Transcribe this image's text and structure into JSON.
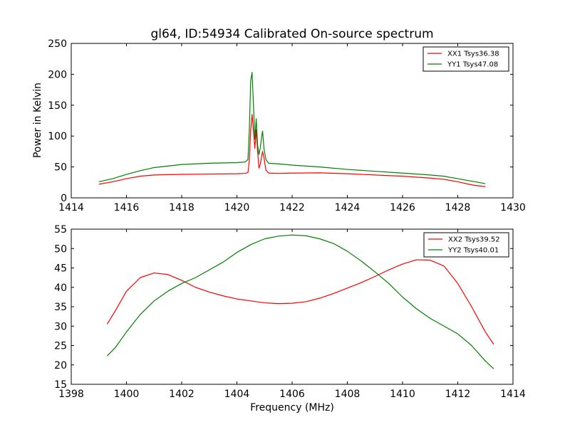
{
  "chart_data": [
    {
      "type": "line",
      "title": "gl64, ID:54934 Calibrated On-source spectrum",
      "xlabel": "",
      "ylabel": "Power in Kelvin",
      "xlim": [
        1414,
        1430
      ],
      "ylim": [
        0,
        250
      ],
      "xticks": [
        "1414",
        "1416",
        "1418",
        "1420",
        "1422",
        "1424",
        "1426",
        "1428",
        "1430"
      ],
      "yticks": [
        "0",
        "50",
        "100",
        "150",
        "200",
        "250"
      ],
      "legend_position": "top-right",
      "series": [
        {
          "name": "XX1 Tsys36.38",
          "color": "#ff0000",
          "points": [
            [
              1415.0,
              22
            ],
            [
              1415.5,
              26
            ],
            [
              1416.0,
              31
            ],
            [
              1416.5,
              35
            ],
            [
              1417.0,
              37
            ],
            [
              1418.0,
              38
            ],
            [
              1419.0,
              38.5
            ],
            [
              1420.0,
              39
            ],
            [
              1420.3,
              39.5
            ],
            [
              1420.4,
              41
            ],
            [
              1420.45,
              60
            ],
            [
              1420.5,
              110
            ],
            [
              1420.55,
              135
            ],
            [
              1420.6,
              108
            ],
            [
              1420.65,
              80
            ],
            [
              1420.7,
              110
            ],
            [
              1420.75,
              75
            ],
            [
              1420.8,
              48
            ],
            [
              1420.85,
              55
            ],
            [
              1420.9,
              68
            ],
            [
              1420.93,
              75
            ],
            [
              1420.98,
              65
            ],
            [
              1421.05,
              45
            ],
            [
              1421.15,
              40
            ],
            [
              1421.5,
              39.5
            ],
            [
              1422.0,
              40
            ],
            [
              1423.0,
              40.5
            ],
            [
              1424.0,
              39
            ],
            [
              1425.0,
              37
            ],
            [
              1426.0,
              35
            ],
            [
              1427.0,
              32
            ],
            [
              1427.5,
              30
            ],
            [
              1428.0,
              26
            ],
            [
              1428.5,
              21
            ],
            [
              1429.0,
              18
            ]
          ]
        },
        {
          "name": "YY1 Tsys47.08",
          "color": "#008000",
          "points": [
            [
              1415.0,
              26
            ],
            [
              1415.5,
              31
            ],
            [
              1416.0,
              38
            ],
            [
              1416.5,
              44
            ],
            [
              1417.0,
              49
            ],
            [
              1418.0,
              54
            ],
            [
              1419.0,
              56
            ],
            [
              1420.0,
              57
            ],
            [
              1420.3,
              58
            ],
            [
              1420.4,
              62
            ],
            [
              1420.45,
              110
            ],
            [
              1420.5,
              190
            ],
            [
              1420.55,
              203
            ],
            [
              1420.6,
              150
            ],
            [
              1420.65,
              95
            ],
            [
              1420.7,
              128
            ],
            [
              1420.75,
              85
            ],
            [
              1420.8,
              70
            ],
            [
              1420.85,
              82
            ],
            [
              1420.9,
              100
            ],
            [
              1420.93,
              108
            ],
            [
              1420.98,
              80
            ],
            [
              1421.05,
              62
            ],
            [
              1421.15,
              56
            ],
            [
              1421.5,
              55
            ],
            [
              1422.0,
              53
            ],
            [
              1423.0,
              50
            ],
            [
              1424.0,
              46
            ],
            [
              1425.0,
              43
            ],
            [
              1426.0,
              40
            ],
            [
              1427.0,
              37
            ],
            [
              1427.5,
              35
            ],
            [
              1428.0,
              31
            ],
            [
              1428.5,
              27
            ],
            [
              1429.0,
              23
            ]
          ]
        }
      ]
    },
    {
      "type": "line",
      "title": "",
      "xlabel": "Frequency (MHz)",
      "ylabel": "",
      "xlim": [
        1398,
        1414
      ],
      "ylim": [
        15,
        55
      ],
      "xticks": [
        "1398",
        "1400",
        "1402",
        "1404",
        "1406",
        "1408",
        "1410",
        "1412",
        "1414"
      ],
      "yticks": [
        "15",
        "20",
        "25",
        "30",
        "35",
        "40",
        "45",
        "50",
        "55"
      ],
      "legend_position": "top-right",
      "series": [
        {
          "name": "XX2 Tsys39.52",
          "color": "#ff0000",
          "points": [
            [
              1399.3,
              30.5
            ],
            [
              1399.6,
              34
            ],
            [
              1400.0,
              39
            ],
            [
              1400.5,
              42.5
            ],
            [
              1401.0,
              43.7
            ],
            [
              1401.5,
              43.3
            ],
            [
              1402.0,
              41.8
            ],
            [
              1402.5,
              40
            ],
            [
              1403.0,
              38.8
            ],
            [
              1403.5,
              37.8
            ],
            [
              1404.0,
              37
            ],
            [
              1404.5,
              36.5
            ],
            [
              1405.0,
              36
            ],
            [
              1405.5,
              35.8
            ],
            [
              1406.0,
              35.9
            ],
            [
              1406.5,
              36.3
            ],
            [
              1407.0,
              37.2
            ],
            [
              1407.5,
              38.4
            ],
            [
              1408.0,
              39.8
            ],
            [
              1408.5,
              41.2
            ],
            [
              1409.0,
              42.8
            ],
            [
              1409.5,
              44.5
            ],
            [
              1410.0,
              46
            ],
            [
              1410.5,
              47.1
            ],
            [
              1411.0,
              47
            ],
            [
              1411.5,
              45.5
            ],
            [
              1412.0,
              41
            ],
            [
              1412.5,
              35
            ],
            [
              1413.0,
              28.5
            ],
            [
              1413.3,
              25.3
            ]
          ]
        },
        {
          "name": "YY2 Tsys40.01",
          "color": "#008000",
          "points": [
            [
              1399.3,
              22.3
            ],
            [
              1399.6,
              24.5
            ],
            [
              1400.0,
              28.5
            ],
            [
              1400.5,
              33
            ],
            [
              1401.0,
              36.5
            ],
            [
              1401.5,
              39
            ],
            [
              1402.0,
              41
            ],
            [
              1402.5,
              42.5
            ],
            [
              1403.0,
              44.5
            ],
            [
              1403.5,
              46.5
            ],
            [
              1404.0,
              49
            ],
            [
              1404.5,
              51
            ],
            [
              1405.0,
              52.5
            ],
            [
              1405.5,
              53.2
            ],
            [
              1406.0,
              53.5
            ],
            [
              1406.5,
              53.3
            ],
            [
              1407.0,
              52.5
            ],
            [
              1407.5,
              51.3
            ],
            [
              1408.0,
              49.3
            ],
            [
              1408.5,
              46.8
            ],
            [
              1409.0,
              44
            ],
            [
              1409.5,
              41
            ],
            [
              1410.0,
              37.5
            ],
            [
              1410.5,
              34.5
            ],
            [
              1411.0,
              32
            ],
            [
              1411.5,
              30
            ],
            [
              1412.0,
              28
            ],
            [
              1412.5,
              25
            ],
            [
              1413.0,
              21
            ],
            [
              1413.3,
              19
            ]
          ]
        }
      ]
    }
  ]
}
